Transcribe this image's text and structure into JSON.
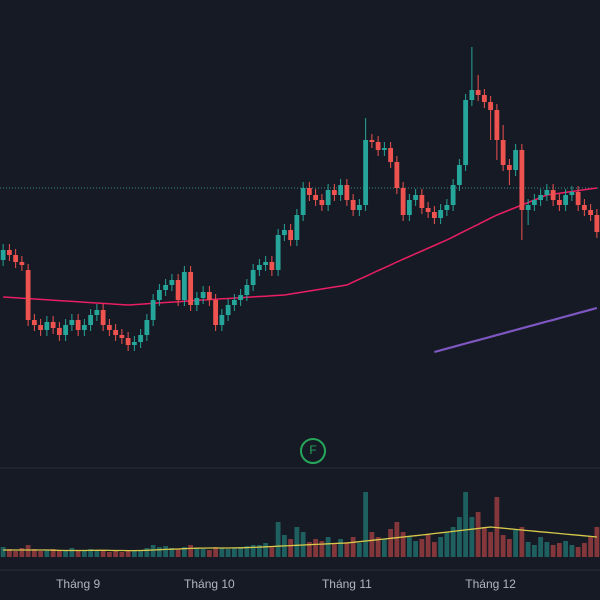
{
  "chart_data": {
    "type": "candlestick",
    "up_color": "#26a69a",
    "down_color": "#ef5350",
    "ma_colors": [
      "#e91e63",
      "#7e57c2"
    ],
    "volume_ma_color": "#d6c94a",
    "xlim": [
      -0.5,
      95.5
    ],
    "ylim": [
      0,
      47
    ],
    "volume_ylim": [
      0,
      100
    ],
    "xticks": [
      {
        "value": 12,
        "label": "Tháng 9"
      },
      {
        "value": 33,
        "label": "Tháng 10"
      },
      {
        "value": 55,
        "label": "Tháng 11"
      },
      {
        "value": 78,
        "label": "Tháng 12"
      }
    ],
    "price_line": 28.2,
    "marker": {
      "label": "F"
    },
    "open": [
      21.0,
      22.0,
      21.5,
      20.8,
      20.0,
      15.0,
      14.5,
      14.0,
      14.8,
      14.2,
      13.5,
      14.5,
      15.0,
      14.0,
      14.5,
      15.5,
      16.0,
      14.5,
      14.0,
      13.5,
      13.2,
      12.5,
      12.8,
      13.5,
      15.0,
      17.0,
      18.0,
      18.5,
      19.0,
      17.0,
      19.8,
      16.5,
      17.2,
      17.8,
      17.0,
      14.5,
      15.5,
      16.5,
      17.0,
      17.5,
      18.5,
      20.0,
      20.5,
      20.8,
      20.0,
      23.5,
      24.0,
      23.0,
      25.5,
      28.2,
      27.5,
      27.0,
      26.5,
      28.0,
      27.5,
      28.5,
      27.0,
      26.0,
      26.5,
      33.0,
      32.8,
      32.0,
      32.2,
      30.8,
      28.2,
      25.5,
      27.0,
      27.5,
      26.2,
      25.8,
      25.2,
      26.0,
      26.5,
      28.5,
      30.5,
      37.0,
      38.0,
      37.5,
      36.8,
      36.0,
      33.0,
      30.5,
      30.0,
      32.0,
      26.0,
      26.5,
      27.0,
      27.5,
      28.0,
      27.0,
      26.5,
      27.5,
      27.8,
      26.5,
      26.0,
      25.5
    ],
    "high": [
      22.6,
      22.6,
      22.1,
      21.4,
      20.6,
      15.6,
      15.1,
      15.4,
      15.4,
      14.8,
      15.1,
      15.6,
      15.6,
      15.1,
      16.1,
      16.6,
      16.6,
      15.1,
      14.6,
      14.1,
      13.8,
      13.4,
      14.1,
      15.6,
      17.6,
      18.6,
      19.1,
      19.6,
      19.6,
      20.4,
      20.4,
      17.8,
      18.4,
      18.4,
      17.6,
      16.1,
      17.1,
      17.6,
      18.1,
      19.1,
      20.6,
      21.1,
      21.4,
      21.4,
      24.1,
      24.6,
      24.6,
      26.1,
      28.8,
      28.8,
      28.1,
      27.6,
      28.6,
      28.6,
      29.1,
      29.1,
      27.6,
      27.1,
      35.2,
      33.6,
      33.4,
      32.8,
      32.8,
      31.4,
      28.8,
      27.6,
      28.1,
      28.1,
      26.8,
      26.4,
      26.6,
      27.1,
      29.1,
      31.1,
      37.6,
      42.3,
      39.5,
      38.1,
      37.4,
      36.6,
      34.5,
      31.1,
      32.6,
      32.6,
      27.1,
      27.6,
      28.1,
      28.6,
      28.6,
      27.6,
      28.1,
      28.4,
      28.4,
      27.1,
      26.6,
      26.1
    ],
    "low": [
      20.4,
      20.9,
      20.2,
      19.9,
      14.4,
      13.9,
      13.4,
      13.4,
      13.6,
      12.9,
      12.9,
      13.9,
      13.4,
      13.4,
      13.9,
      14.9,
      13.9,
      13.4,
      12.9,
      12.6,
      11.9,
      11.9,
      12.2,
      12.9,
      14.4,
      16.4,
      17.4,
      17.9,
      16.4,
      16.4,
      15.9,
      15.9,
      16.6,
      16.4,
      13.9,
      13.9,
      14.9,
      15.9,
      16.4,
      16.9,
      17.9,
      19.4,
      19.9,
      19.4,
      19.4,
      22.9,
      22.4,
      22.4,
      24.9,
      26.9,
      26.4,
      25.9,
      25.9,
      26.9,
      26.9,
      26.4,
      25.4,
      25.4,
      25.9,
      32.2,
      31.4,
      31.4,
      30.2,
      27.6,
      24.9,
      24.9,
      26.4,
      25.6,
      25.2,
      24.6,
      24.6,
      25.4,
      25.9,
      27.9,
      29.9,
      36.4,
      36.9,
      36.2,
      33.0,
      31.0,
      29.9,
      28.5,
      29.4,
      23.0,
      24.5,
      25.9,
      26.4,
      26.9,
      26.4,
      25.9,
      25.9,
      26.9,
      25.9,
      25.4,
      24.9,
      23.2
    ],
    "close": [
      22.0,
      21.5,
      20.8,
      20.5,
      15.0,
      14.5,
      14.0,
      14.8,
      14.2,
      13.5,
      14.5,
      15.0,
      14.0,
      14.5,
      15.5,
      16.0,
      14.5,
      14.0,
      13.5,
      13.2,
      12.5,
      12.8,
      13.5,
      15.0,
      17.0,
      18.0,
      18.5,
      19.0,
      17.0,
      19.8,
      16.5,
      17.2,
      17.8,
      17.0,
      14.5,
      15.5,
      16.5,
      17.0,
      17.5,
      18.5,
      20.0,
      20.5,
      20.8,
      20.0,
      23.5,
      24.0,
      23.0,
      25.5,
      28.2,
      27.5,
      27.0,
      26.5,
      28.0,
      27.5,
      28.5,
      27.0,
      26.0,
      26.5,
      33.0,
      32.8,
      32.0,
      32.2,
      30.8,
      28.2,
      25.5,
      27.0,
      27.5,
      26.2,
      25.8,
      25.2,
      26.0,
      26.5,
      28.5,
      30.5,
      37.0,
      38.0,
      37.5,
      36.8,
      36.0,
      33.0,
      30.5,
      30.0,
      32.0,
      26.0,
      26.5,
      27.0,
      27.5,
      28.0,
      27.0,
      26.5,
      27.5,
      27.8,
      26.5,
      26.0,
      25.5,
      23.8
    ],
    "volume": [
      10,
      8,
      6,
      9,
      12,
      8,
      6,
      7,
      8,
      6,
      7,
      9,
      6,
      7,
      8,
      6,
      7,
      5,
      6,
      5,
      6,
      7,
      6,
      9,
      12,
      10,
      11,
      9,
      8,
      10,
      12,
      9,
      8,
      7,
      10,
      9,
      8,
      9,
      10,
      11,
      12,
      12,
      14,
      10,
      35,
      22,
      18,
      30,
      25,
      15,
      18,
      16,
      20,
      14,
      18,
      15,
      20,
      14,
      65,
      25,
      20,
      18,
      28,
      35,
      25,
      20,
      16,
      18,
      22,
      15,
      20,
      25,
      30,
      40,
      65,
      40,
      45,
      30,
      25,
      60,
      22,
      18,
      28,
      30,
      15,
      12,
      20,
      15,
      12,
      14,
      16,
      12,
      10,
      14,
      20,
      30
    ],
    "ma": [
      [
        17.3,
        17.26,
        17.22,
        17.18,
        17.14,
        17.1,
        17.06,
        17.02,
        16.98,
        16.94,
        16.9,
        16.86,
        16.82,
        16.78,
        16.74,
        16.7,
        16.66,
        16.62,
        16.58,
        16.54,
        16.5,
        16.54,
        16.58,
        16.63,
        16.67,
        16.71,
        16.75,
        16.79,
        16.83,
        16.88,
        16.92,
        16.96,
        17.0,
        17.04,
        17.08,
        17.12,
        17.15,
        17.19,
        17.23,
        17.27,
        17.31,
        17.35,
        17.38,
        17.42,
        17.46,
        17.5,
        17.6,
        17.7,
        17.8,
        17.9,
        18.0,
        18.1,
        18.2,
        18.3,
        18.4,
        18.5,
        18.79,
        19.08,
        19.36,
        19.65,
        19.94,
        20.22,
        20.51,
        20.8,
        21.08,
        21.35,
        21.63,
        21.9,
        22.18,
        22.45,
        22.73,
        23.0,
        23.31,
        23.63,
        23.94,
        24.25,
        24.56,
        24.88,
        25.19,
        25.5,
        25.75,
        26.0,
        26.25,
        26.5,
        26.75,
        27.0,
        27.25,
        27.5,
        27.59,
        27.68,
        27.76,
        27.85,
        27.94,
        28.03,
        28.11,
        28.2
      ],
      [
        null,
        null,
        null,
        null,
        null,
        null,
        null,
        null,
        null,
        null,
        null,
        null,
        null,
        null,
        null,
        null,
        null,
        null,
        null,
        null,
        null,
        null,
        null,
        null,
        null,
        null,
        null,
        null,
        null,
        null,
        null,
        null,
        null,
        null,
        null,
        null,
        null,
        null,
        null,
        null,
        null,
        null,
        null,
        null,
        null,
        null,
        null,
        null,
        null,
        null,
        null,
        null,
        null,
        null,
        null,
        null,
        null,
        null,
        null,
        null,
        null,
        null,
        null,
        null,
        null,
        null,
        null,
        null,
        null,
        11.8,
        11.97,
        12.14,
        12.31,
        12.48,
        12.65,
        12.82,
        12.98,
        13.15,
        13.32,
        13.49,
        13.66,
        13.83,
        14.0,
        14.17,
        14.34,
        14.51,
        14.68,
        14.85,
        15.01,
        15.18,
        15.35,
        15.52,
        15.69,
        15.86,
        16.03,
        16.2
      ]
    ],
    "volume_ma": [
      7,
      7,
      7,
      7,
      7,
      7,
      7,
      7,
      6.8,
      6.6,
      6.5,
      6.5,
      6.5,
      6.5,
      6.6,
      6.7,
      6.7,
      6.6,
      6.5,
      6.5,
      6.4,
      6.4,
      6.5,
      6.7,
      7,
      7.3,
      7.6,
      7.8,
      8,
      8.3,
      8.6,
      8.8,
      8.9,
      9,
      9,
      9,
      9,
      9.1,
      9.2,
      9.4,
      9.6,
      9.9,
      10.2,
      10.5,
      10.8,
      11.1,
      11.4,
      11.7,
      12,
      12.3,
      12.6,
      12.9,
      13.2,
      13.5,
      13.8,
      14,
      14.7,
      15.3,
      16,
      16.7,
      17.3,
      18,
      18.7,
      19.3,
      20,
      20.7,
      21.3,
      22,
      22.7,
      23.5,
      24.2,
      24.9,
      25.6,
      26.4,
      27.1,
      27.8,
      28.5,
      29.3,
      30,
      29.4,
      28.8,
      28.2,
      27.6,
      27,
      26.4,
      25.8,
      25.2,
      24.7,
      24.1,
      23.5,
      22.9,
      22.3,
      21.8,
      21.2,
      20.6,
      20
    ]
  }
}
